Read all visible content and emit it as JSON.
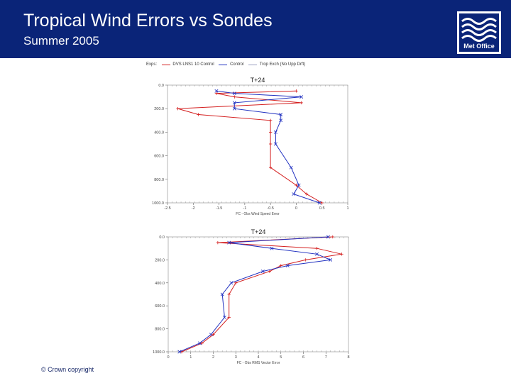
{
  "header": {
    "title": "Tropical Wind Errors vs Sondes",
    "subtitle": "Summer 2005",
    "logo_text": "Met Office",
    "bg": "#0a2478"
  },
  "footer": {
    "copyright": "© Crown copyright"
  },
  "legend": {
    "label": "Exps:",
    "items": [
      {
        "name": "DVS LNS1 10 Control",
        "color": "#d42020",
        "marker": "plus"
      },
      {
        "name": "Control",
        "color": "#2030c0",
        "marker": "cross"
      },
      {
        "name": "Trop Exch (No Upp Drft)",
        "color": "#9aa0c0",
        "marker": "none"
      }
    ]
  },
  "chart_data": [
    {
      "type": "line",
      "title": "T+24",
      "xlabel": "FC - Obs Wind Speed Error",
      "xlim": [
        -2.5,
        1.0
      ],
      "ylim": [
        0,
        1000
      ],
      "y_inverted": true,
      "xticks": [
        "-2.5",
        "-2",
        "-1.5",
        "-1",
        "-0.5",
        "0",
        "0.5",
        "1"
      ],
      "yticks": [
        "0.0",
        "200.0",
        "400.0",
        "600.0",
        "800.0",
        "1000.0"
      ],
      "y": [
        50,
        70,
        100,
        150,
        200,
        250,
        300,
        400,
        500,
        700,
        850,
        925,
        1000
      ],
      "series": [
        {
          "name": "DVS LNS1 10 Control",
          "color": "#d42020",
          "values": [
            0.0,
            -1.55,
            -1.2,
            0.1,
            -2.3,
            -1.9,
            -0.5,
            -0.5,
            -0.5,
            -0.5,
            0.0,
            0.2,
            0.5
          ]
        },
        {
          "name": "Control",
          "color": "#2030c0",
          "values": [
            -1.55,
            -1.2,
            0.1,
            -1.2,
            -1.2,
            -0.3,
            -0.3,
            -0.4,
            -0.4,
            -0.1,
            0.05,
            -0.05,
            0.45
          ]
        }
      ]
    },
    {
      "type": "line",
      "title": "T+24",
      "xlabel": "FC - Obs RMS Vector Error",
      "xlim": [
        0,
        8
      ],
      "ylim": [
        0,
        1000
      ],
      "y_inverted": true,
      "xticks": [
        "0",
        "1",
        "2",
        "3",
        "4",
        "5",
        "6",
        "7",
        "8"
      ],
      "yticks": [
        "0.0",
        "200.0",
        "400.0",
        "600.0",
        "800.0",
        "1000.0"
      ],
      "y": [
        0,
        50,
        100,
        150,
        200,
        250,
        300,
        400,
        500,
        700,
        850,
        925,
        1000
      ],
      "series": [
        {
          "name": "DVS LNS1 10 Control",
          "color": "#d42020",
          "values": [
            7.3,
            2.2,
            6.6,
            7.7,
            6.1,
            5.0,
            4.5,
            3.0,
            2.7,
            2.7,
            2.0,
            1.5,
            0.6
          ]
        },
        {
          "name": "Control",
          "color": "#2030c0",
          "values": [
            7.1,
            2.7,
            4.6,
            6.6,
            7.2,
            5.3,
            4.2,
            2.8,
            2.4,
            2.5,
            1.9,
            1.4,
            0.5
          ]
        }
      ]
    }
  ]
}
